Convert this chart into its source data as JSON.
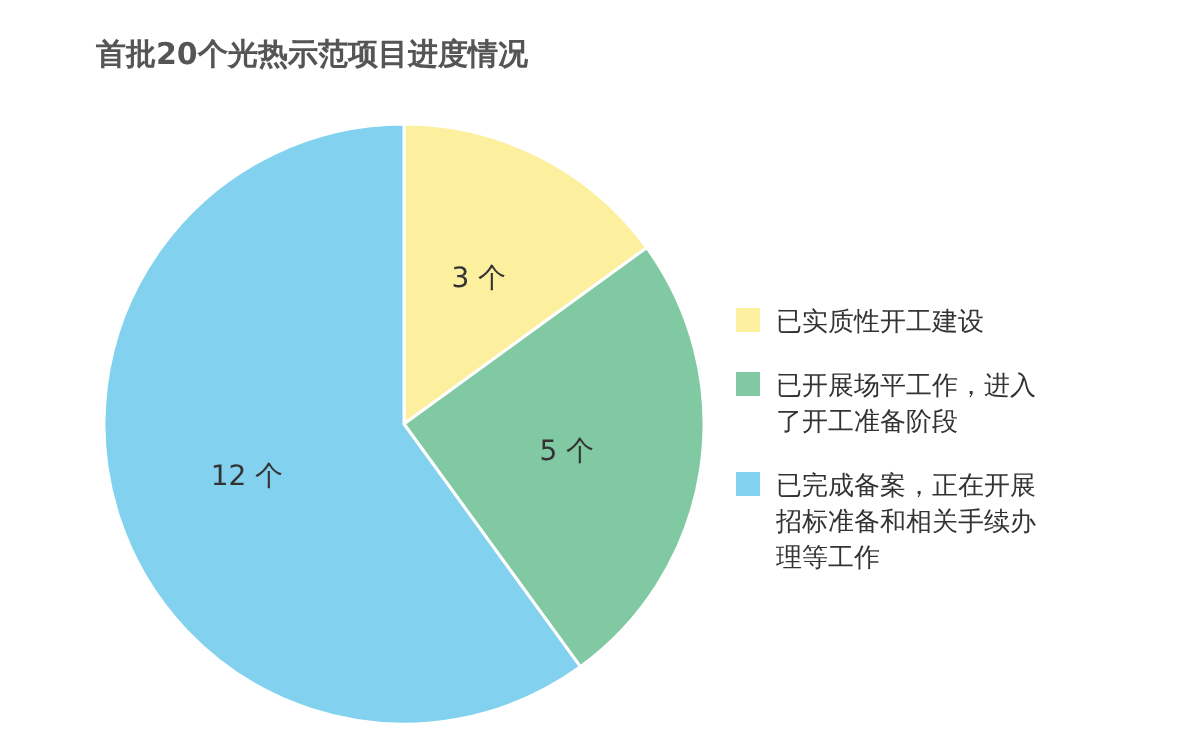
{
  "chart_data": {
    "type": "pie",
    "title": "首批20个光热示范项目进度情况",
    "categories": [
      "已实质性开工建设",
      "已开展场平工作，进入了开工准备阶段",
      "已完成备案，正在开展招标准备和相关手续办理等工作"
    ],
    "values": [
      3,
      5,
      12
    ],
    "colors": [
      "#fcf09e",
      "#80c9a2",
      "#82d2ef"
    ],
    "value_labels": [
      "3 个",
      "5 个",
      "12 个"
    ],
    "legend": "right"
  }
}
